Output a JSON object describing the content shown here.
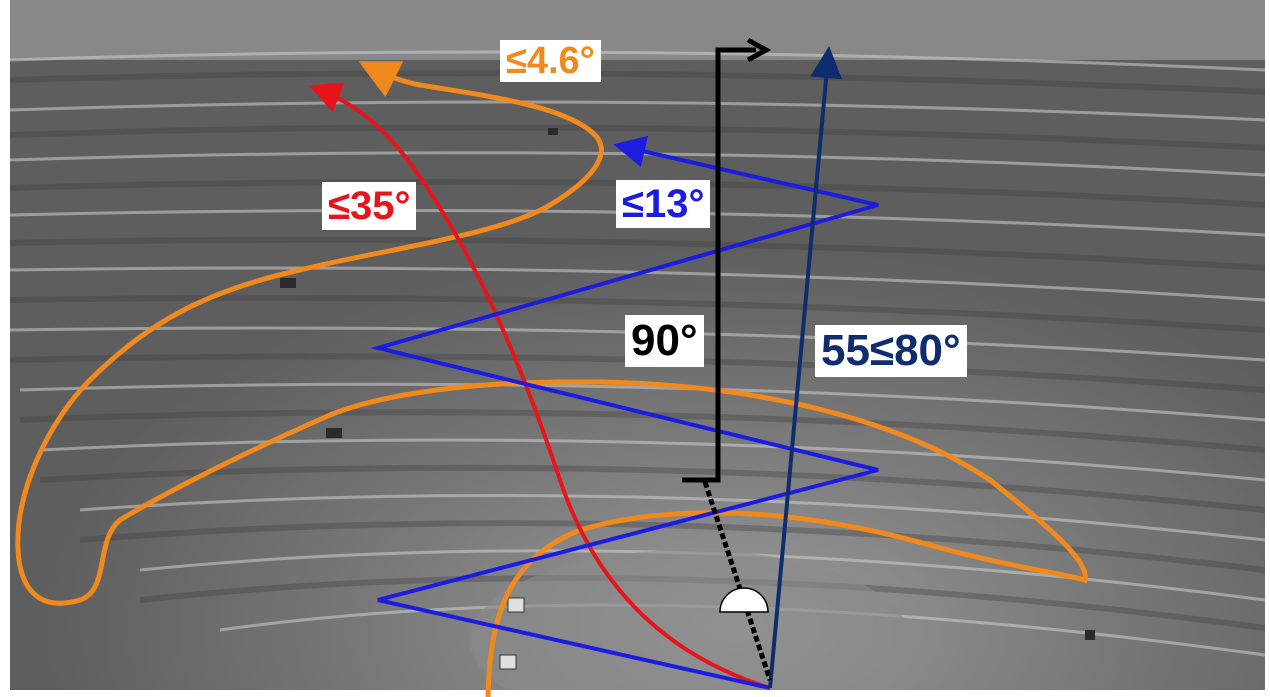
{
  "annotations": {
    "road_grade": {
      "text": "≤4.6°",
      "color": "#f08a1e"
    },
    "red_angle": {
      "text": "≤35°",
      "color": "#e8141c"
    },
    "blue_angle": {
      "text": "≤13°",
      "color": "#1c1ce0"
    },
    "vertical_angle": {
      "text": "90°",
      "color": "#000000"
    },
    "navy_angle": {
      "text": "55≤80°",
      "color": "#0f2c6e"
    }
  },
  "colors": {
    "road": "#f08a1e",
    "red_path": "#e8141c",
    "zigzag": "#1c1ce0",
    "vertical": "#000000",
    "navy_path": "#0f2c6e"
  }
}
